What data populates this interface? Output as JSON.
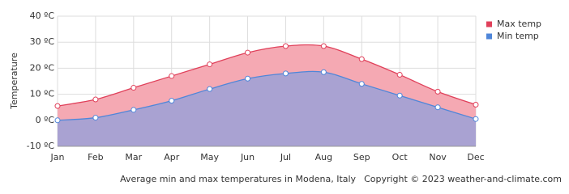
{
  "chart_data": {
    "type": "area",
    "y_label": "Temperature",
    "caption": "Average min and max temperatures in Modena, Italy",
    "copyright": "Copyright © 2023  weather-and-climate.com",
    "categories": [
      "Jan",
      "Feb",
      "Mar",
      "Apr",
      "May",
      "Jun",
      "Jul",
      "Aug",
      "Sep",
      "Oct",
      "Nov",
      "Dec"
    ],
    "series": [
      {
        "name": "Max temp",
        "color": "#e0405a",
        "fill": "#f5a9b3",
        "values": [
          5.5,
          8,
          12.5,
          17,
          21.5,
          26,
          28.5,
          28.5,
          23.5,
          17.5,
          11,
          6
        ]
      },
      {
        "name": "Min temp",
        "color": "#4f86d9",
        "fill": "#a9a2d2",
        "values": [
          0,
          1,
          4,
          7.5,
          12,
          16,
          18,
          18.5,
          14,
          9.5,
          5,
          0.5
        ]
      }
    ],
    "ylim": [
      -10,
      40
    ],
    "yticks": [
      {
        "value": -10,
        "label": "-10 ºC"
      },
      {
        "value": 0,
        "label": "0 ºC"
      },
      {
        "value": 10,
        "label": "10 ºC"
      },
      {
        "value": 20,
        "label": "20 ºC"
      },
      {
        "value": 30,
        "label": "30 ºC"
      },
      {
        "value": 40,
        "label": "40 ºC"
      }
    ],
    "grid": true,
    "legend": "top-right"
  }
}
